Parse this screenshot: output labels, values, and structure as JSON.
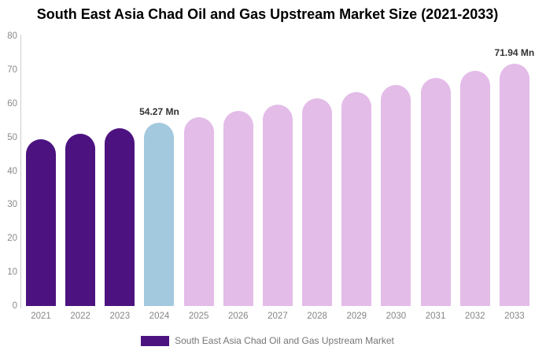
{
  "title": "South East Asia Chad Oil and Gas Upstream Market Size (2021-2033)",
  "legend": {
    "label": "South East Asia Chad Oil and Gas Upstream Market",
    "swatch_color": "#4C1380"
  },
  "colors": {
    "historical": "#4C1380",
    "current": "#A3C9DE",
    "forecast": "#E3BCE8",
    "axis_line": "#CCCCCC",
    "tick_text": "#8A8A8A",
    "value_label_text": "#333333"
  },
  "chart_data": {
    "type": "bar",
    "title": "South East Asia Chad Oil and Gas Upstream Market Size (2021-2033)",
    "xlabel": "",
    "ylabel": "",
    "ylim": [
      0,
      80
    ],
    "yticks": [
      0,
      10,
      20,
      30,
      40,
      50,
      60,
      70,
      80
    ],
    "grid": false,
    "legend_position": "bottom",
    "series_name": "South East Asia Chad Oil and Gas Upstream Market",
    "categories": [
      "2021",
      "2022",
      "2023",
      "2024",
      "2025",
      "2026",
      "2027",
      "2028",
      "2029",
      "2030",
      "2031",
      "2032",
      "2033"
    ],
    "values": [
      49.5,
      51.0,
      52.6,
      54.27,
      56.0,
      57.78,
      59.62,
      61.52,
      63.47,
      65.49,
      67.58,
      69.73,
      71.94
    ],
    "segments": [
      "historical",
      "historical",
      "historical",
      "current",
      "forecast",
      "forecast",
      "forecast",
      "forecast",
      "forecast",
      "forecast",
      "forecast",
      "forecast",
      "forecast"
    ],
    "value_labels": [
      "",
      "",
      "",
      "54.27 Mn",
      "",
      "",
      "",
      "",
      "",
      "",
      "",
      "",
      "71.94 Mn"
    ]
  }
}
